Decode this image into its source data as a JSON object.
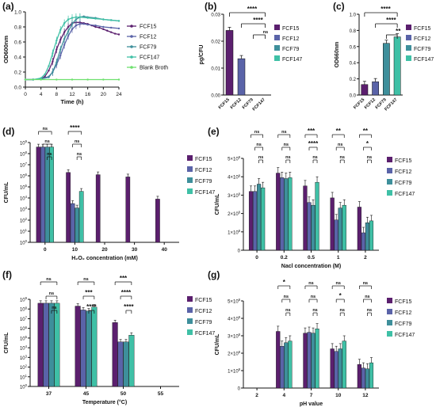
{
  "colors": {
    "FCF15": "#5b1f6e",
    "FCF12": "#5a63a8",
    "FCF79": "#3e8f9b",
    "FCF147": "#3fc0a6",
    "Blank Broth": "#6ee06e"
  },
  "sig": {
    "s1": "*",
    "s2": "**",
    "s3": "***",
    "s4": "****",
    "ns": "ns"
  },
  "chart_data": [
    {
      "panel": "(a)",
      "type": "line",
      "xlabel": "Time (h)",
      "ylabel": "OD600nm",
      "xlim": [
        0,
        24
      ],
      "ylim": [
        0,
        1.0
      ],
      "xticks": [
        0,
        4,
        8,
        12,
        16,
        20,
        24
      ],
      "yticks": [
        0,
        0.2,
        0.4,
        0.6,
        0.8,
        1.0
      ],
      "yticklabels": [
        "0.0",
        "0.2",
        "0.4",
        "0.6",
        "0.8",
        "1.0"
      ],
      "legend": [
        "FCF15",
        "FCF12",
        "FCF79",
        "FCF147",
        "Blank Broth"
      ],
      "series": [
        {
          "name": "FCF15",
          "x": [
            0,
            2,
            4,
            5,
            6,
            7,
            8,
            9,
            10,
            11,
            12,
            13,
            14,
            15,
            16,
            17,
            18,
            19,
            20,
            21,
            22,
            23,
            24
          ],
          "y": [
            0.1,
            0.1,
            0.11,
            0.14,
            0.22,
            0.34,
            0.5,
            0.63,
            0.73,
            0.8,
            0.85,
            0.86,
            0.86,
            0.85,
            0.84,
            0.82,
            0.8,
            0.79,
            0.77,
            0.75,
            0.73,
            0.71,
            0.7
          ]
        },
        {
          "name": "FCF12",
          "x": [
            0,
            2,
            4,
            6,
            7,
            8,
            9,
            10,
            11,
            12,
            13,
            14,
            15,
            16,
            18,
            20,
            22,
            24
          ],
          "y": [
            0.1,
            0.1,
            0.11,
            0.14,
            0.2,
            0.3,
            0.42,
            0.56,
            0.68,
            0.77,
            0.82,
            0.84,
            0.84,
            0.83,
            0.82,
            0.8,
            0.79,
            0.78
          ]
        },
        {
          "name": "FCF79",
          "x": [
            0,
            2,
            4,
            6,
            7,
            8,
            9,
            10,
            11,
            12,
            13,
            14,
            15,
            16,
            18,
            20,
            22,
            24
          ],
          "y": [
            0.1,
            0.1,
            0.11,
            0.13,
            0.2,
            0.33,
            0.5,
            0.64,
            0.74,
            0.84,
            0.9,
            0.93,
            0.94,
            0.93,
            0.92,
            0.9,
            0.89,
            0.88
          ]
        },
        {
          "name": "FCF147",
          "x": [
            0,
            2,
            4,
            5,
            6,
            7,
            8,
            9,
            10,
            11,
            12,
            13,
            14,
            16,
            18,
            20,
            22,
            24
          ],
          "y": [
            0.1,
            0.1,
            0.12,
            0.17,
            0.28,
            0.45,
            0.62,
            0.76,
            0.85,
            0.9,
            0.92,
            0.93,
            0.93,
            0.92,
            0.91,
            0.9,
            0.89,
            0.88
          ]
        },
        {
          "name": "Blank Broth",
          "x": [
            0,
            4,
            8,
            12,
            16,
            20,
            24
          ],
          "y": [
            0.1,
            0.1,
            0.1,
            0.1,
            0.1,
            0.1,
            0.1
          ]
        }
      ]
    },
    {
      "panel": "(b)",
      "type": "bar",
      "ylabel": "pg/CFU",
      "ylim": [
        0,
        0.03
      ],
      "yticks": [
        0,
        0.01,
        0.02,
        0.03
      ],
      "yticklabels": [
        "0.00",
        "0.01",
        "0.02",
        "0.03"
      ],
      "categories": [
        "FCF15",
        "FCF12",
        "FCF79",
        "FCF147"
      ],
      "values": [
        0.024,
        0.0135,
        0.0,
        0.0
      ],
      "legend": [
        "FCF15",
        "FCF12",
        "FCF79",
        "FCF147"
      ],
      "annotations": [
        {
          "from": 0,
          "to": 3,
          "label": "****"
        },
        {
          "from": 1,
          "to": 3,
          "label": "****"
        },
        {
          "from": 2,
          "to": 3,
          "label": "ns"
        }
      ]
    },
    {
      "panel": "(c)",
      "type": "bar",
      "ylabel": "OD660nm",
      "ylim": [
        0,
        1.0
      ],
      "yticks": [
        0,
        0.2,
        0.4,
        0.6,
        0.8,
        1.0
      ],
      "yticklabels": [
        "0.0",
        "0.2",
        "0.4",
        "0.6",
        "0.8",
        "1.0"
      ],
      "categories": [
        "FCF15",
        "FCF12",
        "FCF79",
        "FCF147"
      ],
      "values": [
        0.13,
        0.165,
        0.64,
        0.72
      ],
      "legend": [
        "FCF15",
        "FCF12",
        "FCF79",
        "FCF147"
      ],
      "annotations": [
        {
          "from": 0,
          "to": 3,
          "label": "****"
        },
        {
          "from": 1,
          "to": 3,
          "label": "****"
        },
        {
          "from": 2,
          "to": 3,
          "label": "**"
        }
      ]
    },
    {
      "panel": "(d)",
      "type": "bar",
      "log": true,
      "xlabel": "H₂O₂ concentration (mM)",
      "ylabel": "CFU/mL",
      "yticks_exp": [
        0,
        1,
        2,
        3,
        4,
        5,
        6,
        7,
        8,
        9
      ],
      "categories": [
        "0",
        "10",
        "20",
        "30",
        "40"
      ],
      "series": [
        {
          "name": "FCF15",
          "values": [
            8.6,
            6.3,
            6.1,
            5.9,
            3.9
          ]
        },
        {
          "name": "FCF12",
          "values": [
            8.6,
            3.5,
            null,
            null,
            null
          ]
        },
        {
          "name": "FCF79",
          "values": [
            8.6,
            3.1,
            null,
            null,
            null
          ]
        },
        {
          "name": "FCF147",
          "values": [
            8.6,
            4.6,
            null,
            null,
            null
          ]
        }
      ],
      "value_note": "log10 CFU/mL",
      "legend": [
        "FCF15",
        "FCF12",
        "FCF79",
        "FCF147"
      ],
      "annotations": [
        {
          "group": 0,
          "labels": [
            "ns",
            "ns",
            "ns"
          ]
        },
        {
          "group": 1,
          "labels": [
            "****",
            "ns",
            "ns"
          ]
        }
      ]
    },
    {
      "panel": "(e)",
      "type": "bar",
      "xlabel": "Nacl concentration (M)",
      "ylabel": "CFU/mL",
      "ylim": [
        0,
        500000000.0
      ],
      "yticks": [
        0,
        100000000.0,
        200000000.0,
        300000000.0,
        400000000.0,
        500000000.0
      ],
      "yticklabels": [
        "0",
        "1×10⁸",
        "2×10⁸",
        "3×10⁸",
        "4×10⁸",
        "5×10⁸"
      ],
      "categories": [
        "0",
        "0.2",
        "0.5",
        "1",
        "2"
      ],
      "series": [
        {
          "name": "FCF15",
          "values": [
            320000000.0,
            420000000.0,
            350000000.0,
            285000000.0,
            235000000.0
          ]
        },
        {
          "name": "FCF12",
          "values": [
            320000000.0,
            395000000.0,
            260000000.0,
            165000000.0,
            95000000.0
          ]
        },
        {
          "name": "FCF79",
          "values": [
            360000000.0,
            390000000.0,
            245000000.0,
            230000000.0,
            150000000.0
          ]
        },
        {
          "name": "FCF147",
          "values": [
            340000000.0,
            395000000.0,
            370000000.0,
            245000000.0,
            160000000.0
          ]
        }
      ],
      "legend": [
        "FCF15",
        "FCF12",
        "FCF79",
        "FCF147"
      ],
      "annotations": [
        {
          "group": 0,
          "labels": [
            "ns",
            "ns",
            "ns"
          ]
        },
        {
          "group": 1,
          "labels": [
            "ns",
            "ns",
            "ns"
          ]
        },
        {
          "group": 2,
          "labels": [
            "***",
            "****",
            "ns"
          ]
        },
        {
          "group": 3,
          "labels": [
            "**",
            "ns",
            "ns"
          ]
        },
        {
          "group": 4,
          "labels": [
            "**",
            "*",
            "ns"
          ]
        }
      ]
    },
    {
      "panel": "(f)",
      "type": "bar",
      "log": true,
      "xlabel": "Temperature (°C)",
      "ylabel": "CFU/mL",
      "yticks_exp": [
        0,
        1,
        2,
        3,
        4,
        5,
        6,
        7,
        8,
        9
      ],
      "categories": [
        "37",
        "45",
        "50",
        "55"
      ],
      "series": [
        {
          "name": "FCF15",
          "values": [
            8.6,
            8.3,
            6.6,
            null
          ]
        },
        {
          "name": "FCF12",
          "values": [
            8.6,
            7.9,
            4.6,
            null
          ]
        },
        {
          "name": "FCF79",
          "values": [
            8.6,
            7.8,
            4.6,
            null
          ]
        },
        {
          "name": "FCF147",
          "values": [
            8.6,
            8.2,
            5.3,
            null
          ]
        }
      ],
      "value_note": "log10 CFU/mL",
      "legend": [
        "FCF15",
        "FCF12",
        "FCF79",
        "FCF147"
      ],
      "annotations": [
        {
          "group": 0,
          "labels": [
            "ns",
            "ns",
            "ns"
          ]
        },
        {
          "group": 1,
          "labels": [
            "ns",
            "***",
            "****"
          ]
        },
        {
          "group": 2,
          "labels": [
            "***",
            "****",
            "****"
          ]
        }
      ]
    },
    {
      "panel": "(g)",
      "type": "bar",
      "xlabel": "pH value",
      "ylabel": "CFU/mL",
      "ylim": [
        0,
        500000000.0
      ],
      "yticks": [
        0,
        100000000.0,
        200000000.0,
        300000000.0,
        400000000.0,
        500000000.0
      ],
      "yticklabels": [
        "0",
        "1×10⁸",
        "2×10⁸",
        "3×10⁸",
        "4×10⁸",
        "5×10⁸"
      ],
      "categories": [
        "2",
        "4",
        "7",
        "10",
        "12"
      ],
      "series": [
        {
          "name": "FCF15",
          "values": [
            null,
            325000000.0,
            315000000.0,
            225000000.0,
            135000000.0
          ]
        },
        {
          "name": "FCF12",
          "values": [
            null,
            240000000.0,
            320000000.0,
            210000000.0,
            115000000.0
          ]
        },
        {
          "name": "FCF79",
          "values": [
            null,
            260000000.0,
            315000000.0,
            225000000.0,
            110000000.0
          ]
        },
        {
          "name": "FCF147",
          "values": [
            null,
            270000000.0,
            340000000.0,
            270000000.0,
            145000000.0
          ]
        }
      ],
      "legend": [
        "FCF15",
        "FCF12",
        "FCF79",
        "FCF147"
      ],
      "annotations": [
        {
          "group": 1,
          "labels": [
            "*",
            "ns",
            "ns"
          ]
        },
        {
          "group": 2,
          "labels": [
            "ns",
            "ns",
            "ns"
          ]
        },
        {
          "group": 3,
          "labels": [
            "ns",
            "*",
            "ns"
          ]
        },
        {
          "group": 4,
          "labels": [
            "ns",
            "ns",
            "ns"
          ]
        }
      ]
    }
  ]
}
